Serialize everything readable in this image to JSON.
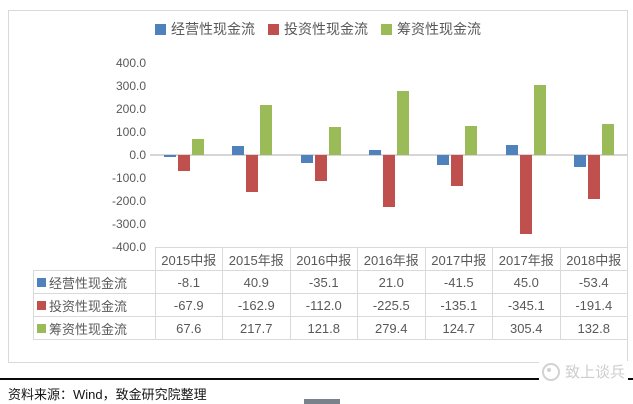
{
  "chart_data": {
    "type": "bar",
    "title": "",
    "categories": [
      "2015中报",
      "2015年报",
      "2016中报",
      "2016年报",
      "2017中报",
      "2017年报",
      "2018中报"
    ],
    "series": [
      {
        "name": "经营性现金流",
        "color": "#4F81BD",
        "values": [
          -8.1,
          40.9,
          -35.1,
          21.0,
          -41.5,
          45.0,
          -53.4
        ]
      },
      {
        "name": "投资性现金流",
        "color": "#C0504D",
        "values": [
          -67.9,
          -162.9,
          -112.0,
          -225.5,
          -135.1,
          -345.1,
          -191.4
        ]
      },
      {
        "name": "筹资性现金流",
        "color": "#9BBB59",
        "values": [
          67.6,
          217.7,
          121.8,
          279.4,
          124.7,
          305.4,
          132.8
        ]
      }
    ],
    "xlabel": "",
    "ylabel": "",
    "ylim": [
      -400,
      400
    ],
    "ytick_step": 100,
    "ytick_decimals": 1,
    "legend_position": "top",
    "grid": false,
    "data_table_shown": true
  },
  "table": {
    "corner_label": "",
    "column_headers": [
      "2015中报",
      "2015年报",
      "2016中报",
      "2016年报",
      "2017中报",
      "2017年报",
      "2018中报"
    ],
    "rows": [
      {
        "label": "经营性现金流",
        "key_color": "#4F81BD",
        "values": [
          "-8.1",
          "40.9",
          "-35.1",
          "21.0",
          "-41.5",
          "45.0",
          "-53.4"
        ]
      },
      {
        "label": "投资性现金流",
        "key_color": "#C0504D",
        "values": [
          "-67.9",
          "-162.9",
          "-112.0",
          "-225.5",
          "-135.1",
          "-345.1",
          "-191.4"
        ]
      },
      {
        "label": "筹资性现金流",
        "key_color": "#9BBB59",
        "values": [
          "67.6",
          "217.7",
          "121.8",
          "279.4",
          "124.7",
          "305.4",
          "132.8"
        ]
      }
    ]
  },
  "footer": {
    "source_text": "资料来源：Wind，致金研究院整理",
    "watermark_text": "致上谈兵"
  }
}
